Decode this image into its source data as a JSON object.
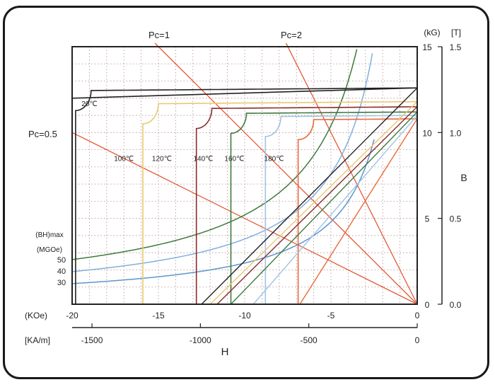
{
  "chart_data": {
    "type": "line",
    "title": "",
    "x_axis_top": {
      "unit": "(KOe)",
      "range": [
        -20,
        0
      ],
      "ticks": [
        -20,
        -15,
        -10,
        -5,
        0
      ],
      "tick_labels": [
        "-20",
        "-15",
        "-10",
        "-5",
        "0"
      ]
    },
    "x_axis_bottom": {
      "unit": "[KA/m]",
      "ticks": [
        -1500,
        -1000,
        -500,
        0
      ],
      "tick_labels": [
        "-1500",
        "-1000",
        "-500",
        "0"
      ],
      "label": "H"
    },
    "y_axis_left": {
      "unit": "(kG)",
      "range": [
        0,
        15
      ],
      "ticks": [
        0,
        5,
        10,
        15
      ],
      "tick_labels": [
        "0",
        "5",
        "10",
        "15"
      ]
    },
    "y_axis_right": {
      "unit": "[T]",
      "ticks": [
        0.0,
        0.5,
        1.0,
        1.5
      ],
      "tick_labels": [
        "0.0",
        "0.5",
        "1.0",
        "1.5"
      ],
      "label": "B"
    },
    "grid": true,
    "bhmax_label_line1": "(BH)max",
    "bhmax_label_line2": "(MGOe)",
    "bhmax_values": [
      "50",
      "40",
      "30"
    ],
    "bhmax_y": [
      2.6,
      1.9,
      1.2
    ],
    "bhmax_curve_colors": [
      "#3d7a3d",
      "#7fb0dc",
      "#5b95cf"
    ],
    "pc_lines": [
      {
        "label": "Pc=1",
        "slope": 1,
        "color": "#e05a3a"
      },
      {
        "label": "Pc=2",
        "slope": 2,
        "color": "#e05a3a"
      },
      {
        "label": "Pc=0.5",
        "slope": 0.5,
        "color": "#e05a3a"
      }
    ],
    "grade_temps": [
      {
        "label": "20℃",
        "x": -19.0,
        "y": 11.7
      },
      {
        "label": "100℃",
        "x": -17.0,
        "y": 8.5
      },
      {
        "label": "120℃",
        "x": -14.8,
        "y": 8.5
      },
      {
        "label": "140℃",
        "x": -12.4,
        "y": 8.5
      },
      {
        "label": "160℃",
        "x": -10.6,
        "y": 8.5
      },
      {
        "label": "180℃",
        "x": -8.3,
        "y": 8.5
      }
    ],
    "demag_curves": [
      {
        "color": "#222222",
        "Br": 12.6,
        "Hk": -19.8,
        "knee": 0.9,
        "Hc": -12.5
      },
      {
        "color": "#e8c870",
        "Br": 11.8,
        "Hk": -15.9,
        "knee": 0.9,
        "Hc": -12.0
      },
      {
        "color": "#8a2c2c",
        "Br": 11.5,
        "Hk": -12.8,
        "knee": 0.9,
        "Hc": -11.6
      },
      {
        "color": "#3d7a3d",
        "Br": 11.2,
        "Hk": -10.8,
        "knee": 0.9,
        "Hc": -10.8
      },
      {
        "color": "#9ec4e6",
        "Br": 11.0,
        "Hk": -8.8,
        "knee": 0.9,
        "Hc": -9.5
      },
      {
        "color": "#e86a3c",
        "Br": 10.8,
        "Hk": -6.9,
        "knee": 0.9,
        "Hc": -6.8
      }
    ]
  }
}
